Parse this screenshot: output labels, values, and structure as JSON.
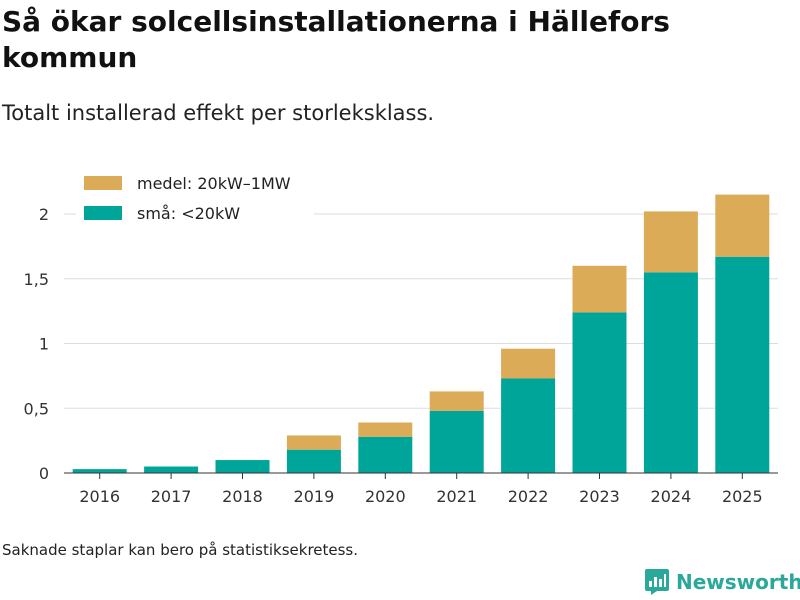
{
  "header": {
    "title": "Så ökar solcellsinstallationerna i Hällefors kommun",
    "subtitle": "Totalt installerad effekt per storleksklass."
  },
  "footer": {
    "note": "Saknade staplar kan bero på statistiksekretess.",
    "brand": "Newsworthy"
  },
  "colors": {
    "medel": "#dbab57",
    "sma": "#00a59a",
    "grid": "#dddddd",
    "axis": "#333333",
    "brand": "#2aa89a"
  },
  "chart_data": {
    "type": "bar",
    "stacked": true,
    "categories": [
      "2016",
      "2017",
      "2018",
      "2019",
      "2020",
      "2021",
      "2022",
      "2023",
      "2024",
      "2025"
    ],
    "series": [
      {
        "name": "små: <20kW",
        "values": [
          0.03,
          0.05,
          0.1,
          0.18,
          0.28,
          0.48,
          0.73,
          1.24,
          1.55,
          1.67
        ]
      },
      {
        "name": "medel: 20kW–1MW",
        "values": [
          0,
          0,
          0,
          0.11,
          0.11,
          0.15,
          0.23,
          0.36,
          0.47,
          0.48
        ]
      }
    ],
    "legend_order": [
      "medel: 20kW–1MW",
      "små: <20kW"
    ],
    "y_ticks": [
      0,
      0.5,
      1,
      1.5,
      2
    ],
    "y_tick_labels": [
      "0",
      "0,5",
      "1",
      "1,5",
      "2"
    ],
    "ylim": [
      0,
      2.2
    ],
    "xlabel": "",
    "ylabel": "",
    "legend_position": "top-left",
    "grid": true
  }
}
